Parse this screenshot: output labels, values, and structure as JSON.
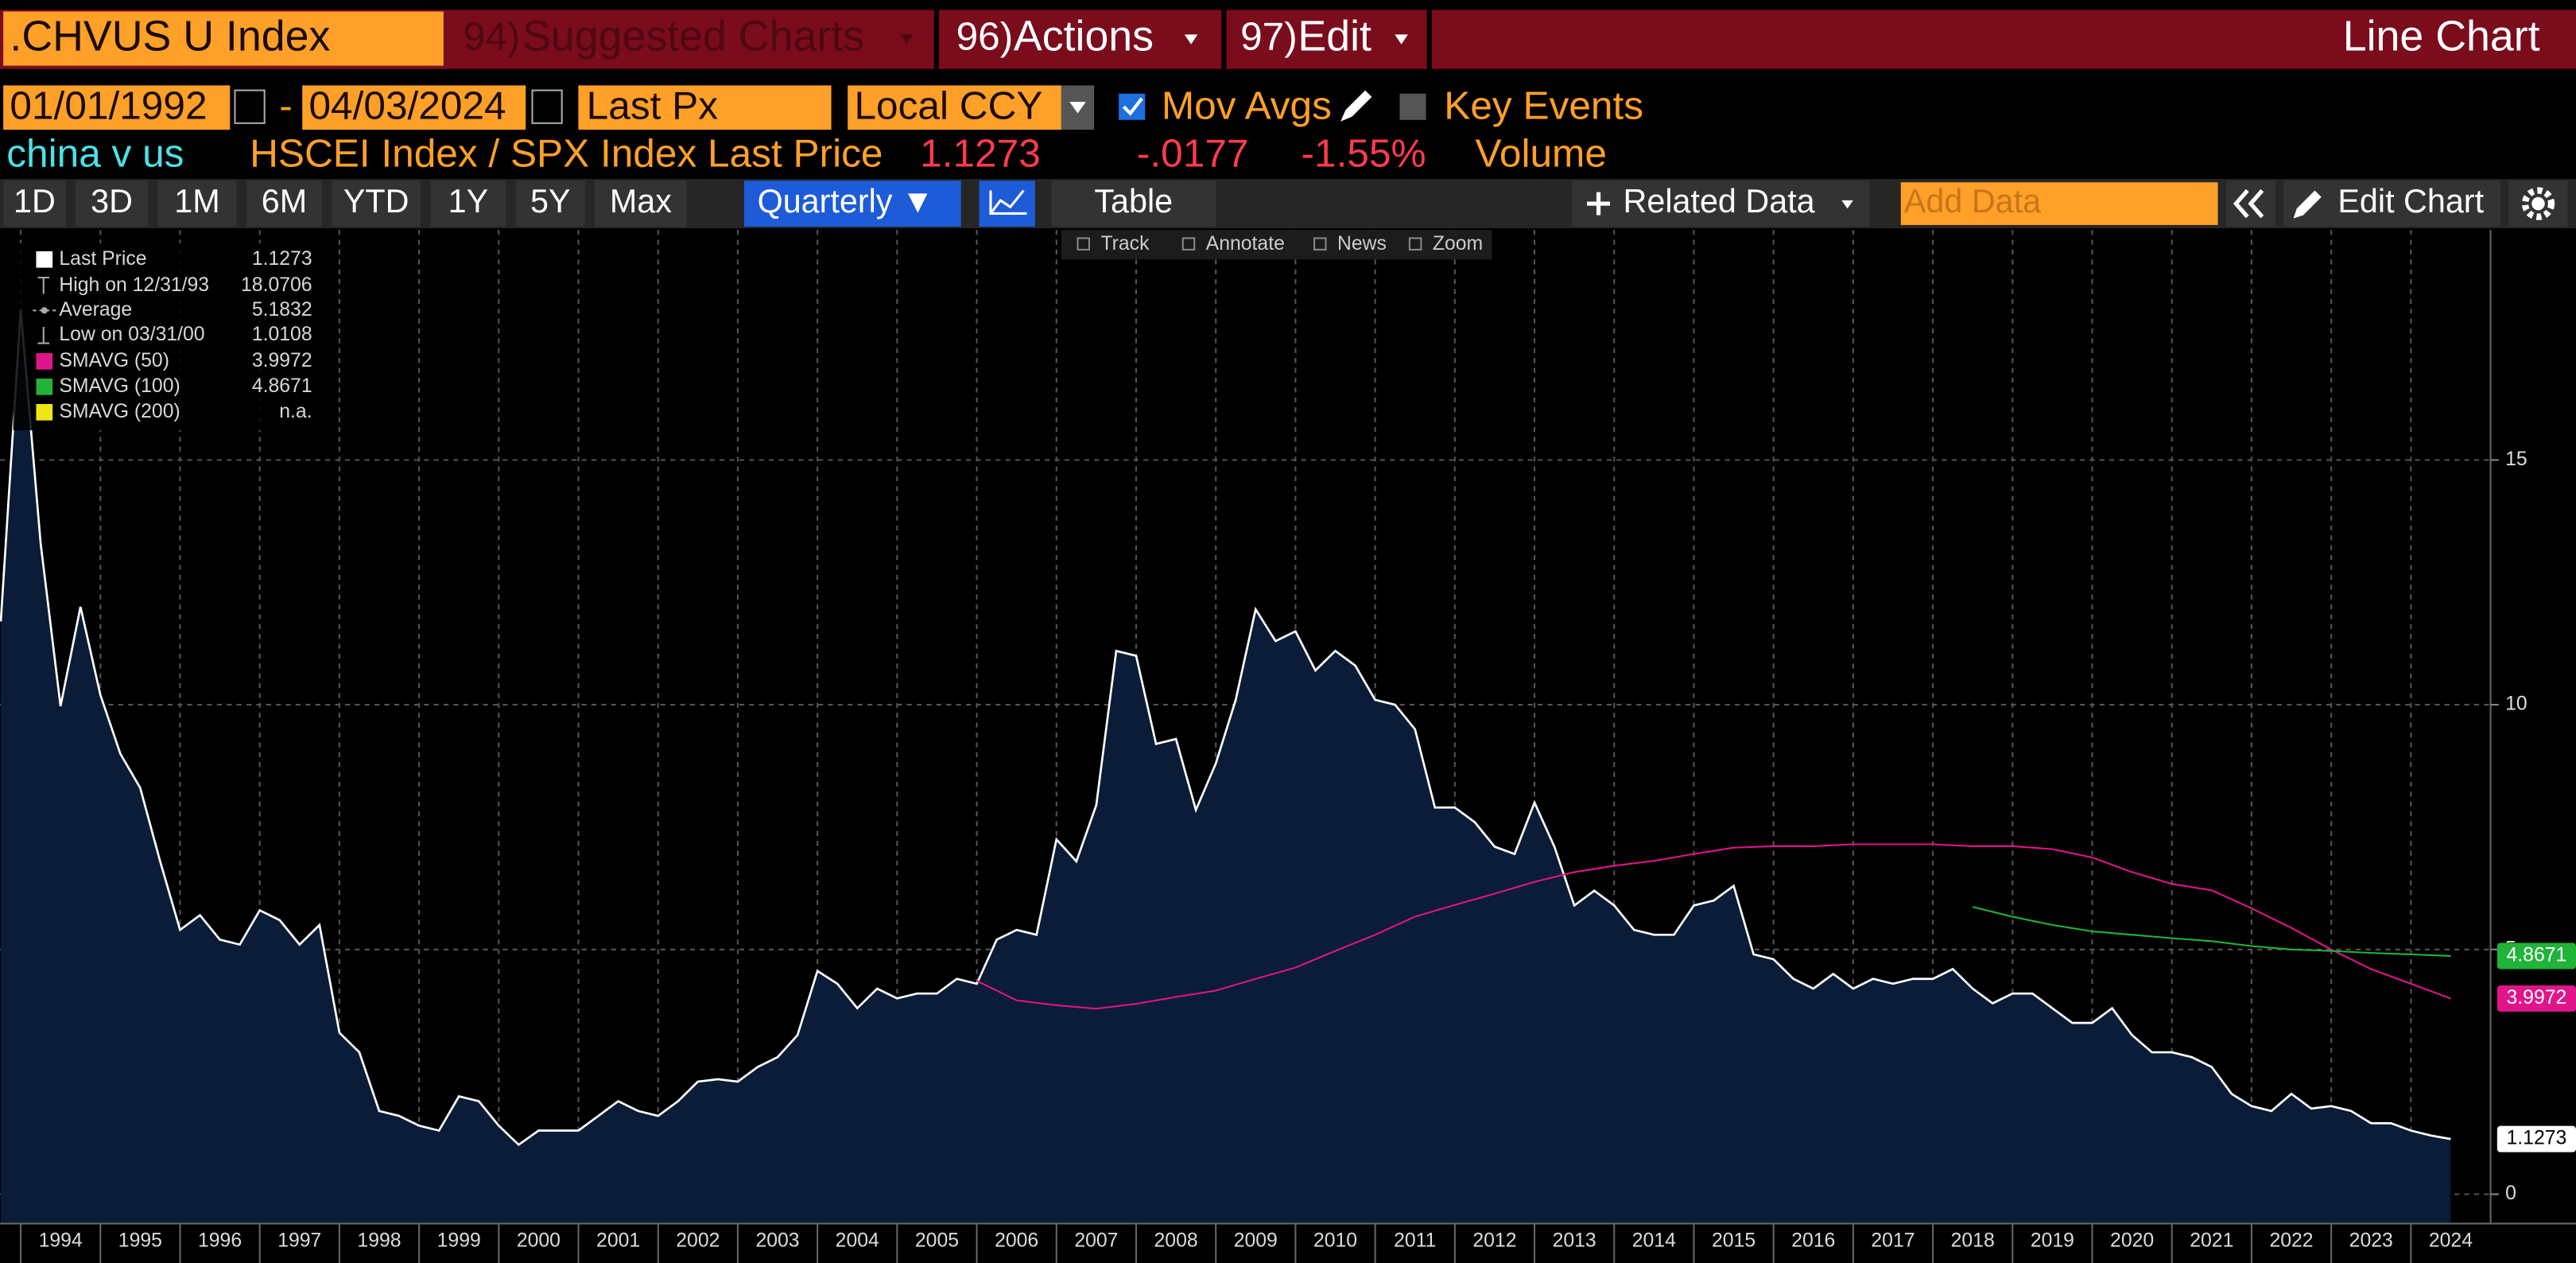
{
  "toolbar": {
    "security": ".CHVUS U Index",
    "suggested_num": "94)",
    "suggested": "Suggested Charts",
    "actions_num": "96)",
    "actions": "Actions",
    "edit_num": "97)",
    "edit": "Edit",
    "chart_kind": "Line Chart",
    "start_date": "01/01/1992",
    "date_sep": "-",
    "end_date": "04/03/2024",
    "field": "Last Px",
    "currency": "Local CCY",
    "mov_avgs": "Mov Avgs",
    "key_events": "Key Events",
    "chart_name": "china v us",
    "description": "HSCEI Index / SPX Index Last Price",
    "last": "1.1273",
    "change": "-.0177",
    "change_pct": "-1.55%",
    "volume": "Volume",
    "periods": [
      "1D",
      "3D",
      "1M",
      "6M",
      "YTD",
      "1Y",
      "5Y",
      "Max"
    ],
    "frequency": "Quarterly ▼",
    "table": "Table",
    "related": "Related Data",
    "add_data": "Add Data",
    "edit_chart": "Edit Chart",
    "tools": [
      "Track",
      "Annotate",
      "News",
      "Zoom"
    ]
  },
  "chart_data": {
    "type": "line",
    "high_label": "High on 12/31/93",
    "average_label": "Average",
    "average": 5.1832,
    "low_label": "Low on 03/31/00",
    "xlim": [
      1993.74,
      2025.0
    ],
    "ylim": [
      -0.6,
      19.7
    ],
    "xticks": [
      1994,
      1995,
      1996,
      1997,
      1998,
      1999,
      2000,
      2001,
      2002,
      2003,
      2004,
      2005,
      2006,
      2007,
      2008,
      2009,
      2010,
      2011,
      2012,
      2013,
      2014,
      2015,
      2016,
      2017,
      2018,
      2019,
      2020,
      2021,
      2022,
      2023,
      2024
    ],
    "yticks": [
      0,
      5,
      10,
      15
    ],
    "grid": true,
    "area_color": "#0a1c38",
    "series": [
      {
        "name": "Last Price",
        "color": "#ffffff",
        "x": [
          1993.75,
          1994,
          1994.25,
          1994.5,
          1994.75,
          1995,
          1995.25,
          1995.5,
          1995.75,
          1996,
          1996.25,
          1996.5,
          1996.75,
          1997,
          1997.25,
          1997.5,
          1997.75,
          1998,
          1998.25,
          1998.5,
          1998.75,
          1999,
          1999.25,
          1999.5,
          1999.75,
          2000,
          2000.25,
          2000.5,
          2000.75,
          2001,
          2001.25,
          2001.5,
          2001.75,
          2002,
          2002.25,
          2002.5,
          2002.75,
          2003,
          2003.25,
          2003.5,
          2003.75,
          2004,
          2004.25,
          2004.5,
          2004.75,
          2005,
          2005.25,
          2005.5,
          2005.75,
          2006,
          2006.25,
          2006.5,
          2006.75,
          2007,
          2007.25,
          2007.5,
          2007.75,
          2008,
          2008.25,
          2008.5,
          2008.75,
          2009,
          2009.25,
          2009.5,
          2009.75,
          2010,
          2010.25,
          2010.5,
          2010.75,
          2011,
          2011.25,
          2011.5,
          2011.75,
          2012,
          2012.25,
          2012.5,
          2012.75,
          2013,
          2013.25,
          2013.5,
          2013.75,
          2014,
          2014.25,
          2014.5,
          2014.75,
          2015,
          2015.25,
          2015.5,
          2015.75,
          2016,
          2016.25,
          2016.5,
          2016.75,
          2017,
          2017.25,
          2017.5,
          2017.75,
          2018,
          2018.25,
          2018.5,
          2018.75,
          2019,
          2019.25,
          2019.5,
          2019.75,
          2020,
          2020.25,
          2020.5,
          2020.75,
          2021,
          2021.25,
          2021.5,
          2021.75,
          2022,
          2022.25,
          2022.5,
          2022.75,
          2023,
          2023.25,
          2023.5,
          2023.75,
          2024,
          2024.25,
          2024.5
        ],
        "values": [
          11.7,
          18.0706,
          13.3,
          9.97,
          12.0,
          10.2,
          9.0,
          8.3,
          6.8,
          5.4,
          5.7,
          5.2,
          5.1,
          5.8,
          5.6,
          5.1,
          5.5,
          3.3,
          2.9,
          1.7,
          1.6,
          1.4,
          1.3,
          2.0,
          1.9,
          1.4,
          1.0108,
          1.3,
          1.3,
          1.3,
          1.6,
          1.9,
          1.7,
          1.6,
          1.9,
          2.3,
          2.35,
          2.3,
          2.6,
          2.8,
          3.25,
          4.56,
          4.3,
          3.8,
          4.2,
          4.0,
          4.1,
          4.1,
          4.4,
          4.3,
          5.2,
          5.4,
          5.3,
          7.25,
          6.8,
          7.95,
          11.1,
          11.0,
          9.2,
          9.3,
          7.85,
          8.8,
          10.1,
          11.95,
          11.3,
          11.5,
          10.7,
          11.1,
          10.8,
          10.1,
          10.0,
          9.5,
          7.9,
          7.9,
          7.6,
          7.1,
          6.95,
          8.0,
          7.1,
          5.9,
          6.2,
          5.9,
          5.4,
          5.3,
          5.3,
          5.9,
          6.0,
          6.3,
          4.9,
          4.8,
          4.4,
          4.2,
          4.5,
          4.2,
          4.4,
          4.3,
          4.4,
          4.4,
          4.6,
          4.2,
          3.9,
          4.1,
          4.1,
          3.8,
          3.5,
          3.5,
          3.8,
          3.25,
          2.9,
          2.9,
          2.8,
          2.6,
          2.05,
          1.8,
          1.7,
          2.05,
          1.75,
          1.8,
          1.7,
          1.45,
          1.45,
          1.3,
          1.2,
          1.1273
        ]
      },
      {
        "name": "SMAVG (50)",
        "color": "#e0158a",
        "x": [
          2006,
          2006.5,
          2007,
          2007.5,
          2008,
          2008.5,
          2009,
          2009.5,
          2010,
          2010.5,
          2011,
          2011.5,
          2012,
          2012.5,
          2013,
          2013.5,
          2014,
          2014.5,
          2015,
          2015.5,
          2016,
          2016.5,
          2017,
          2017.5,
          2018,
          2018.5,
          2019,
          2019.5,
          2020,
          2020.5,
          2021,
          2021.5,
          2022,
          2022.5,
          2023,
          2023.5,
          2024,
          2024.5
        ],
        "values": [
          4.36,
          3.96,
          3.86,
          3.79,
          3.89,
          4.03,
          4.16,
          4.4,
          4.63,
          4.97,
          5.3,
          5.67,
          5.91,
          6.14,
          6.38,
          6.58,
          6.71,
          6.81,
          6.95,
          7.08,
          7.11,
          7.11,
          7.15,
          7.15,
          7.15,
          7.11,
          7.11,
          7.05,
          6.88,
          6.58,
          6.34,
          6.21,
          5.84,
          5.44,
          5.0,
          4.6,
          4.3,
          3.9972
        ]
      },
      {
        "name": "SMAVG (100)",
        "color": "#21b33a",
        "x": [
          2018.5,
          2019,
          2019.5,
          2020,
          2020.5,
          2021,
          2021.5,
          2022,
          2022.5,
          2023,
          2023.5,
          2024,
          2024.5
        ],
        "values": [
          5.87,
          5.67,
          5.5,
          5.37,
          5.3,
          5.23,
          5.17,
          5.07,
          5.0,
          4.97,
          4.93,
          4.9,
          4.8671
        ]
      },
      {
        "name": "SMAVG (200)",
        "color": "#f0e614",
        "x": [],
        "values": [],
        "legend_value": "n.a."
      }
    ]
  }
}
